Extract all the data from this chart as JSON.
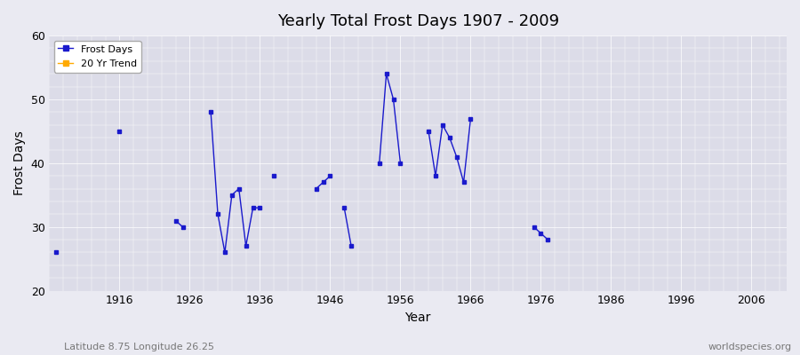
{
  "title": "Yearly Total Frost Days 1907 - 2009",
  "xlabel": "Year",
  "ylabel": "Frost Days",
  "subtitle": "Latitude 8.75 Longitude 26.25",
  "watermark": "worldspecies.org",
  "xlim": [
    1906,
    2011
  ],
  "ylim": [
    20,
    60
  ],
  "xticks": [
    1916,
    1926,
    1936,
    1946,
    1956,
    1966,
    1976,
    1986,
    1996,
    2006
  ],
  "yticks": [
    20,
    30,
    40,
    50,
    60
  ],
  "background_color": "#eaeaf2",
  "plot_bg_color": "#dcdce8",
  "line_color": "#1a1acc",
  "marker_color": "#1a1acc",
  "legend_frost_color": "#1a1acc",
  "legend_trend_color": "#ffaa00",
  "data_years": [
    1907,
    1916,
    1924,
    1925,
    1929,
    1930,
    1931,
    1932,
    1933,
    1934,
    1935,
    1936,
    1938,
    1944,
    1945,
    1946,
    1948,
    1949,
    1953,
    1954,
    1955,
    1956,
    1960,
    1961,
    1962,
    1963,
    1964,
    1965,
    1966,
    1975,
    1976,
    1977
  ],
  "data_values": [
    26,
    45,
    31,
    30,
    48,
    32,
    26,
    35,
    36,
    27,
    33,
    33,
    38,
    36,
    37,
    38,
    33,
    27,
    40,
    54,
    50,
    40,
    45,
    38,
    46,
    44,
    41,
    37,
    47,
    30,
    29,
    28
  ]
}
